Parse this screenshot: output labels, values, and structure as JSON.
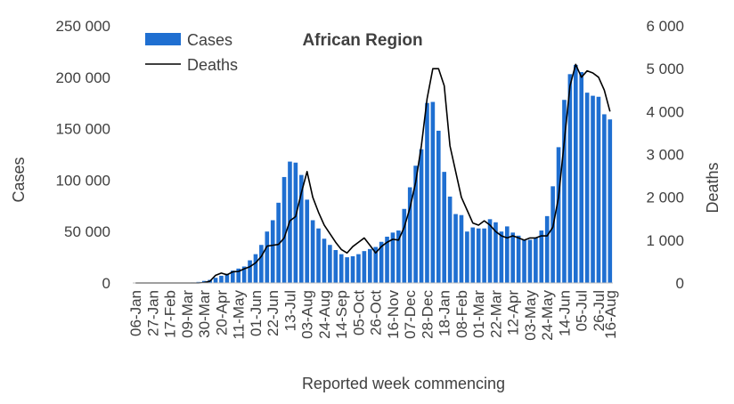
{
  "chart_data": {
    "type": "bar+line",
    "title": "African Region",
    "xlabel": "Reported week commencing",
    "ylabel_left": "Cases",
    "ylabel_right": "Deaths",
    "ylim_left": [
      0,
      250000
    ],
    "ylim_right": [
      0,
      6000
    ],
    "yticks_left": [
      "0",
      "50 000",
      "100 000",
      "150 000",
      "200 000",
      "250 000"
    ],
    "yticks_right": [
      "0",
      "1 000",
      "2 000",
      "3 000",
      "4 000",
      "5 000",
      "6 000"
    ],
    "ytick_values_left": [
      0,
      50000,
      100000,
      150000,
      200000,
      250000
    ],
    "ytick_values_right": [
      0,
      1000,
      2000,
      3000,
      4000,
      5000,
      6000
    ],
    "x_tick_labels": [
      "06-Jan",
      "27-Jan",
      "17-Feb",
      "09-Mar",
      "30-Mar",
      "20-Apr",
      "11-May",
      "01-Jun",
      "22-Jun",
      "13-Jul",
      "03-Aug",
      "24-Aug",
      "14-Sep",
      "05-Oct",
      "26-Oct",
      "16-Nov",
      "07-Dec",
      "28-Dec",
      "18-Jan",
      "08-Feb",
      "01-Mar",
      "22-Mar",
      "12-Apr",
      "03-May",
      "24-May",
      "14-Jun",
      "05-Jul",
      "26-Jul",
      "16-Aug"
    ],
    "legend_position": "top-left",
    "series": [
      {
        "name": "Cases",
        "type": "bar",
        "axis": "left",
        "color": "#1f6fd1",
        "values": [
          0,
          0,
          0,
          0,
          0,
          0,
          0,
          0,
          0,
          0,
          500,
          1000,
          2000,
          3000,
          5000,
          7000,
          9000,
          12000,
          14000,
          16000,
          22000,
          28000,
          37000,
          50000,
          61000,
          78000,
          103000,
          118000,
          117000,
          105000,
          81000,
          61000,
          53000,
          43000,
          37000,
          32000,
          28000,
          25000,
          26000,
          28000,
          31000,
          33000,
          35000,
          40000,
          45000,
          49000,
          51000,
          72000,
          93000,
          114000,
          130000,
          175000,
          176000,
          148000,
          108000,
          84000,
          67000,
          66000,
          50000,
          54000,
          53000,
          53000,
          62000,
          59000,
          50000,
          55000,
          49000,
          46000,
          42000,
          42000,
          44000,
          51000,
          65000,
          94000,
          132000,
          178000,
          203000,
          212000,
          205000,
          185000,
          182000,
          181000,
          164000,
          159000
        ]
      },
      {
        "name": "Deaths",
        "type": "line",
        "axis": "right",
        "color": "#000000",
        "values": [
          0,
          0,
          0,
          0,
          0,
          0,
          0,
          0,
          0,
          0,
          0,
          0,
          10,
          40,
          180,
          230,
          190,
          260,
          270,
          330,
          380,
          470,
          620,
          860,
          880,
          900,
          1050,
          1450,
          1550,
          2100,
          2600,
          2000,
          1650,
          1350,
          1150,
          950,
          780,
          700,
          850,
          950,
          1050,
          880,
          700,
          850,
          950,
          1020,
          1000,
          1300,
          1750,
          2350,
          3200,
          4300,
          5000,
          5000,
          4600,
          3200,
          2600,
          2000,
          1700,
          1400,
          1350,
          1450,
          1350,
          1200,
          1100,
          1050,
          1100,
          1050,
          1000,
          1050,
          1050,
          1100,
          1100,
          1300,
          2000,
          3300,
          4600,
          5100,
          4800,
          4950,
          4900,
          4800,
          4500,
          4000
        ]
      }
    ]
  }
}
